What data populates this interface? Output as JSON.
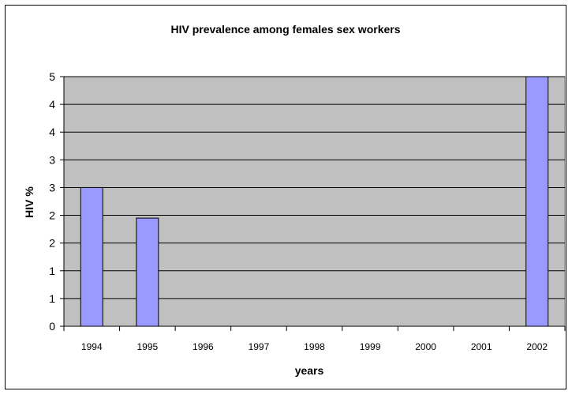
{
  "chart_data": {
    "type": "bar",
    "title": "HIV prevalence among females sex workers",
    "xlabel": "years",
    "ylabel": "HIV %",
    "categories": [
      "1994",
      "1995",
      "1996",
      "1997",
      "1998",
      "1999",
      "2000",
      "2001",
      "2002"
    ],
    "values": [
      2.5,
      1.95,
      0,
      0,
      0,
      0,
      0,
      0,
      4.5
    ],
    "ylim": [
      0,
      4.5
    ],
    "y_tick_labels": [
      "0",
      "1",
      "1",
      "2",
      "2",
      "3",
      "3",
      "4",
      "4",
      "5"
    ],
    "grid": true,
    "legend": "none",
    "colors": {
      "plot_background": "#c0c0c0",
      "bar_fill": "#9999ff",
      "bar_stroke": "#000000",
      "gridline": "#000000"
    }
  }
}
